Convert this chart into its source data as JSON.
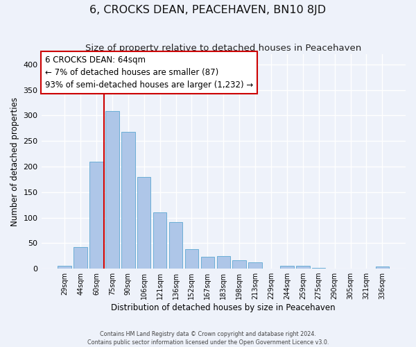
{
  "title": "6, CROCKS DEAN, PEACEHAVEN, BN10 8JD",
  "subtitle": "Size of property relative to detached houses in Peacehaven",
  "xlabel": "Distribution of detached houses by size in Peacehaven",
  "ylabel": "Number of detached properties",
  "categories": [
    "29sqm",
    "44sqm",
    "60sqm",
    "75sqm",
    "90sqm",
    "106sqm",
    "121sqm",
    "136sqm",
    "152sqm",
    "167sqm",
    "183sqm",
    "198sqm",
    "213sqm",
    "229sqm",
    "244sqm",
    "259sqm",
    "275sqm",
    "290sqm",
    "305sqm",
    "321sqm",
    "336sqm"
  ],
  "values": [
    5,
    42,
    210,
    308,
    268,
    180,
    110,
    91,
    38,
    23,
    25,
    16,
    13,
    0,
    5,
    5,
    2,
    0,
    0,
    0,
    4
  ],
  "bar_color": "#aec6e8",
  "bar_edge_color": "#6baed6",
  "property_line_x": 2.5,
  "property_line_color": "#cc0000",
  "annotation_text": "6 CROCKS DEAN: 64sqm\n← 7% of detached houses are smaller (87)\n93% of semi-detached houses are larger (1,232) →",
  "annotation_box_color": "#ffffff",
  "annotation_box_edge": "#cc0000",
  "ylim": [
    0,
    420
  ],
  "yticks": [
    0,
    50,
    100,
    150,
    200,
    250,
    300,
    350,
    400
  ],
  "background_color": "#eef2fa",
  "grid_color": "#ffffff",
  "footer_line1": "Contains HM Land Registry data © Crown copyright and database right 2024.",
  "footer_line2": "Contains public sector information licensed under the Open Government Licence v3.0.",
  "title_fontsize": 11.5,
  "subtitle_fontsize": 9.5,
  "annotation_fontsize": 8.5
}
